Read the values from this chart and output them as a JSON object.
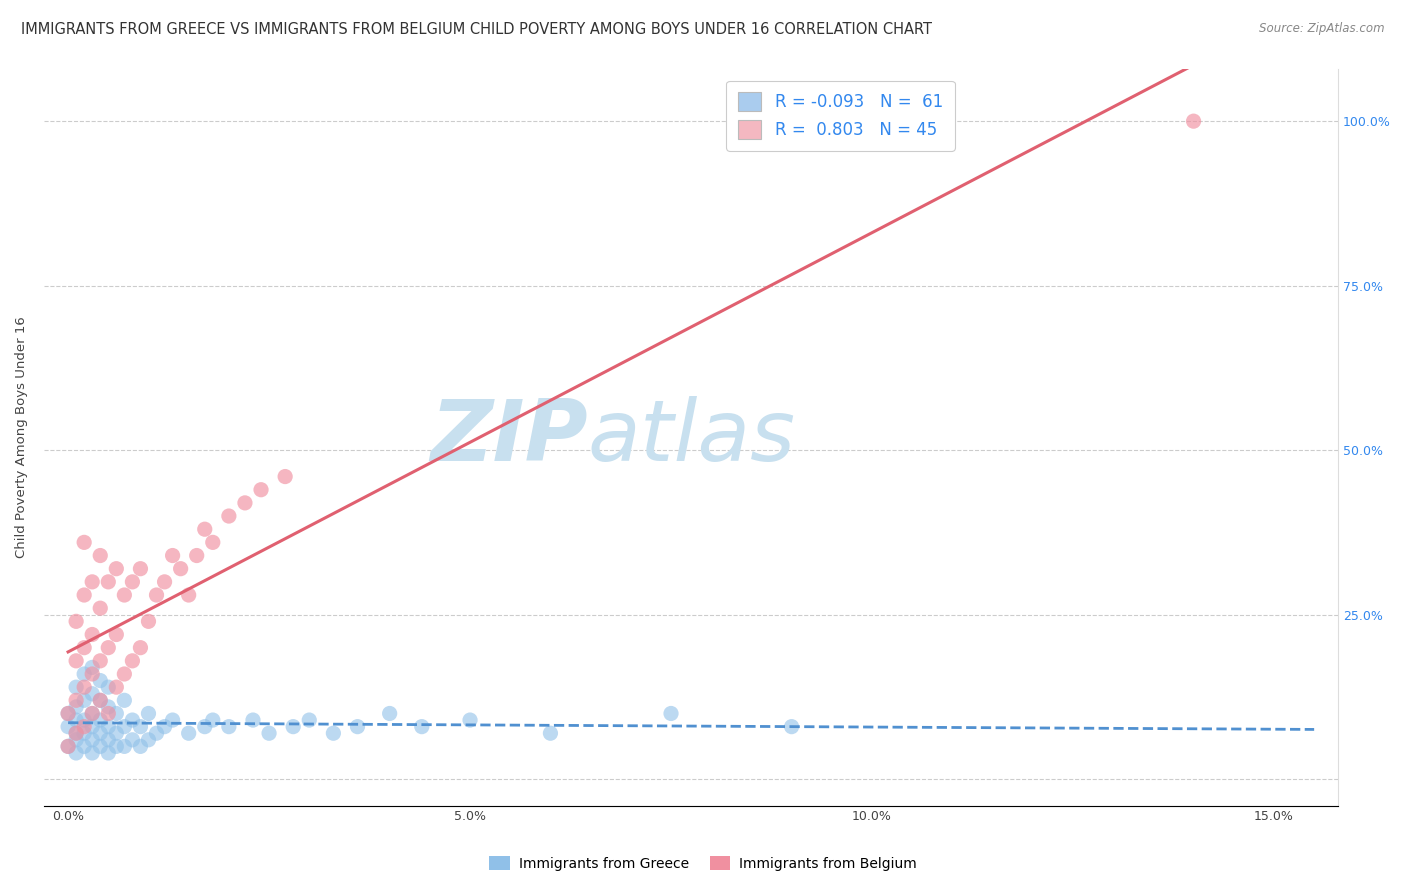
{
  "title": "IMMIGRANTS FROM GREECE VS IMMIGRANTS FROM BELGIUM CHILD POVERTY AMONG BOYS UNDER 16 CORRELATION CHART",
  "source": "Source: ZipAtlas.com",
  "ylabel": "Child Poverty Among Boys Under 16",
  "x_ticks": [
    0.0,
    0.05,
    0.1,
    0.15
  ],
  "x_tick_labels": [
    "0.0%",
    "5.0%",
    "10.0%",
    "15.0%"
  ],
  "y_ticks": [
    0.0,
    0.25,
    0.5,
    0.75,
    1.0
  ],
  "y_tick_labels_left": [
    "",
    "",
    "",
    "",
    ""
  ],
  "y_tick_labels_right": [
    "",
    "25.0%",
    "50.0%",
    "75.0%",
    "100.0%"
  ],
  "xlim": [
    -0.003,
    0.158
  ],
  "ylim": [
    -0.04,
    1.08
  ],
  "legend_R1": "-0.093",
  "legend_N1": "61",
  "legend_R2": "0.803",
  "legend_N2": "45",
  "watermark_zip": "ZIP",
  "watermark_atlas": "atlas",
  "watermark_color": "#c8e0ef",
  "greece_color": "#90c0e8",
  "belgium_color": "#f090a0",
  "trend_greece_color": "#5090d0",
  "trend_belgium_color": "#e06070",
  "legend_patch_greece": "#aaccee",
  "legend_patch_belgium": "#f4b8c1",
  "greece_scatter_x": [
    0.0,
    0.0,
    0.0,
    0.001,
    0.001,
    0.001,
    0.001,
    0.001,
    0.001,
    0.002,
    0.002,
    0.002,
    0.002,
    0.002,
    0.003,
    0.003,
    0.003,
    0.003,
    0.003,
    0.003,
    0.004,
    0.004,
    0.004,
    0.004,
    0.004,
    0.005,
    0.005,
    0.005,
    0.005,
    0.005,
    0.006,
    0.006,
    0.006,
    0.007,
    0.007,
    0.007,
    0.008,
    0.008,
    0.009,
    0.009,
    0.01,
    0.01,
    0.011,
    0.012,
    0.013,
    0.015,
    0.017,
    0.018,
    0.02,
    0.023,
    0.025,
    0.028,
    0.03,
    0.033,
    0.036,
    0.04,
    0.044,
    0.05,
    0.06,
    0.075,
    0.09
  ],
  "greece_scatter_y": [
    0.05,
    0.08,
    0.1,
    0.04,
    0.06,
    0.07,
    0.09,
    0.11,
    0.14,
    0.05,
    0.07,
    0.09,
    0.12,
    0.16,
    0.04,
    0.06,
    0.08,
    0.1,
    0.13,
    0.17,
    0.05,
    0.07,
    0.09,
    0.12,
    0.15,
    0.04,
    0.06,
    0.08,
    0.11,
    0.14,
    0.05,
    0.07,
    0.1,
    0.05,
    0.08,
    0.12,
    0.06,
    0.09,
    0.05,
    0.08,
    0.06,
    0.1,
    0.07,
    0.08,
    0.09,
    0.07,
    0.08,
    0.09,
    0.08,
    0.09,
    0.07,
    0.08,
    0.09,
    0.07,
    0.08,
    0.1,
    0.08,
    0.09,
    0.07,
    0.1,
    0.08
  ],
  "belgium_scatter_x": [
    0.0,
    0.0,
    0.001,
    0.001,
    0.001,
    0.001,
    0.002,
    0.002,
    0.002,
    0.002,
    0.002,
    0.003,
    0.003,
    0.003,
    0.003,
    0.004,
    0.004,
    0.004,
    0.004,
    0.005,
    0.005,
    0.005,
    0.006,
    0.006,
    0.006,
    0.007,
    0.007,
    0.008,
    0.008,
    0.009,
    0.009,
    0.01,
    0.011,
    0.012,
    0.013,
    0.014,
    0.015,
    0.016,
    0.017,
    0.018,
    0.02,
    0.022,
    0.024,
    0.027,
    0.14
  ],
  "belgium_scatter_y": [
    0.05,
    0.1,
    0.07,
    0.12,
    0.18,
    0.24,
    0.08,
    0.14,
    0.2,
    0.28,
    0.36,
    0.1,
    0.16,
    0.22,
    0.3,
    0.12,
    0.18,
    0.26,
    0.34,
    0.1,
    0.2,
    0.3,
    0.14,
    0.22,
    0.32,
    0.16,
    0.28,
    0.18,
    0.3,
    0.2,
    0.32,
    0.24,
    0.28,
    0.3,
    0.34,
    0.32,
    0.28,
    0.34,
    0.38,
    0.36,
    0.4,
    0.42,
    0.44,
    0.46,
    1.0
  ],
  "background_color": "#ffffff",
  "grid_color": "#cccccc",
  "title_fontsize": 10.5,
  "axis_label_fontsize": 9.5,
  "tick_fontsize": 9,
  "legend_fontsize": 12
}
